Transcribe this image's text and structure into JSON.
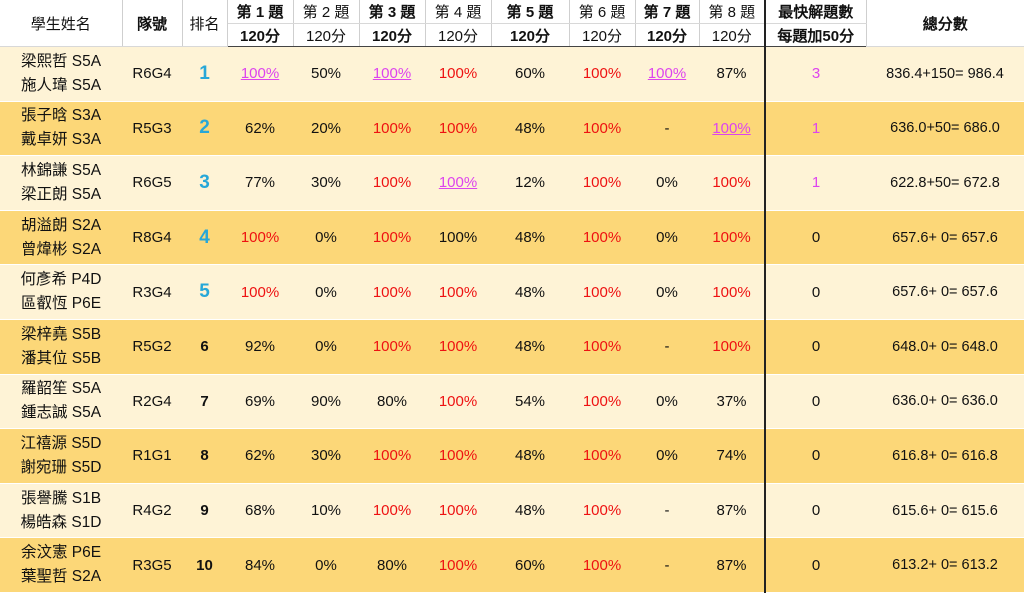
{
  "colors": {
    "row_light": "#fef3d6",
    "row_dark": "#fcd778",
    "full_score": "#ee1111",
    "first_solve": "#dd44ee",
    "top_rank": "#27a7d8"
  },
  "header": {
    "name": "學生姓名",
    "team": "隊號",
    "rank": "排名",
    "questions": [
      {
        "label": "第 1 題",
        "points": "120分",
        "bold": true
      },
      {
        "label": "第 2 題",
        "points": "120分",
        "bold": false
      },
      {
        "label": "第 3 題",
        "points": "120分",
        "bold": true
      },
      {
        "label": "第 4 題",
        "points": "120分",
        "bold": false
      },
      {
        "label": "第 5 題",
        "points": "120分",
        "bold": true
      },
      {
        "label": "第 6 題",
        "points": "120分",
        "bold": false
      },
      {
        "label": "第 7 題",
        "points": "120分",
        "bold": true
      },
      {
        "label": "第 8 題",
        "points": "120分",
        "bold": false
      }
    ],
    "fastest": "最快解題數",
    "fastest_sub": "每題加50分",
    "total": "總分數"
  },
  "rows": [
    {
      "names": [
        "梁熙哲 S5A",
        "施人瑋 S5A"
      ],
      "team": "R6G4",
      "rank": "1",
      "top": true,
      "scores": [
        [
          "100%",
          "pink"
        ],
        [
          "50%",
          "dark"
        ],
        [
          "100%",
          "pink"
        ],
        [
          "100%",
          "red"
        ],
        [
          "60%",
          "dark"
        ],
        [
          "100%",
          "red"
        ],
        [
          "100%",
          "pink"
        ],
        [
          "87%",
          "dark"
        ]
      ],
      "fastest": "3",
      "fastest_color": "magenta",
      "total": "836.4+150= 986.4"
    },
    {
      "names": [
        "張子晗 S3A",
        "戴卓妍 S3A"
      ],
      "team": "R5G3",
      "rank": "2",
      "top": true,
      "scores": [
        [
          "62%",
          "dark"
        ],
        [
          "20%",
          "dark"
        ],
        [
          "100%",
          "red"
        ],
        [
          "100%",
          "red"
        ],
        [
          "48%",
          "dark"
        ],
        [
          "100%",
          "red"
        ],
        [
          "-",
          "dark"
        ],
        [
          "100%",
          "pink"
        ]
      ],
      "fastest": "1",
      "fastest_color": "magenta",
      "total": "636.0+50= 686.0"
    },
    {
      "names": [
        "林錦謙 S5A",
        "梁正朗 S5A"
      ],
      "team": "R6G5",
      "rank": "3",
      "top": true,
      "scores": [
        [
          "77%",
          "dark"
        ],
        [
          "30%",
          "dark"
        ],
        [
          "100%",
          "red"
        ],
        [
          "100%",
          "pink"
        ],
        [
          "12%",
          "dark"
        ],
        [
          "100%",
          "red"
        ],
        [
          "0%",
          "dark"
        ],
        [
          "100%",
          "red"
        ]
      ],
      "fastest": "1",
      "fastest_color": "magenta",
      "total": "622.8+50= 672.8"
    },
    {
      "names": [
        "胡溢朗 S2A",
        "曾煒彬 S2A"
      ],
      "team": "R8G4",
      "rank": "4",
      "top": true,
      "scores": [
        [
          "100%",
          "red"
        ],
        [
          "0%",
          "dark"
        ],
        [
          "100%",
          "red"
        ],
        [
          "100%",
          "dark"
        ],
        [
          "48%",
          "dark"
        ],
        [
          "100%",
          "red"
        ],
        [
          "0%",
          "dark"
        ],
        [
          "100%",
          "red"
        ]
      ],
      "fastest": "0",
      "fastest_color": "dark",
      "total": "657.6+ 0= 657.6"
    },
    {
      "names": [
        "何彥希 P4D",
        "區叡恆 P6E"
      ],
      "team": "R3G4",
      "rank": "5",
      "top": true,
      "scores": [
        [
          "100%",
          "red"
        ],
        [
          "0%",
          "dark"
        ],
        [
          "100%",
          "red"
        ],
        [
          "100%",
          "red"
        ],
        [
          "48%",
          "dark"
        ],
        [
          "100%",
          "red"
        ],
        [
          "0%",
          "dark"
        ],
        [
          "100%",
          "red"
        ]
      ],
      "fastest": "0",
      "fastest_color": "dark",
      "total": "657.6+ 0= 657.6"
    },
    {
      "names": [
        "梁梓堯 S5B",
        "潘其位 S5B"
      ],
      "team": "R5G2",
      "rank": "6",
      "top": false,
      "scores": [
        [
          "92%",
          "dark"
        ],
        [
          "0%",
          "dark"
        ],
        [
          "100%",
          "red"
        ],
        [
          "100%",
          "red"
        ],
        [
          "48%",
          "dark"
        ],
        [
          "100%",
          "red"
        ],
        [
          "-",
          "dark"
        ],
        [
          "100%",
          "red"
        ]
      ],
      "fastest": "0",
      "fastest_color": "dark",
      "total": "648.0+ 0= 648.0"
    },
    {
      "names": [
        "羅韶笙 S5A",
        "鍾志誠 S5A"
      ],
      "team": "R2G4",
      "rank": "7",
      "top": false,
      "scores": [
        [
          "69%",
          "dark"
        ],
        [
          "90%",
          "dark"
        ],
        [
          "80%",
          "dark"
        ],
        [
          "100%",
          "red"
        ],
        [
          "54%",
          "dark"
        ],
        [
          "100%",
          "red"
        ],
        [
          "0%",
          "dark"
        ],
        [
          "37%",
          "dark"
        ]
      ],
      "fastest": "0",
      "fastest_color": "dark",
      "total": "636.0+ 0= 636.0"
    },
    {
      "names": [
        "江禧源 S5D",
        "謝宛珊 S5D"
      ],
      "team": "R1G1",
      "rank": "8",
      "top": false,
      "scores": [
        [
          "62%",
          "dark"
        ],
        [
          "30%",
          "dark"
        ],
        [
          "100%",
          "red"
        ],
        [
          "100%",
          "red"
        ],
        [
          "48%",
          "dark"
        ],
        [
          "100%",
          "red"
        ],
        [
          "0%",
          "dark"
        ],
        [
          "74%",
          "dark"
        ]
      ],
      "fastest": "0",
      "fastest_color": "dark",
      "total": "616.8+ 0= 616.8"
    },
    {
      "names": [
        "張譽騰 S1B",
        "楊皓森 S1D"
      ],
      "team": "R4G2",
      "rank": "9",
      "top": false,
      "scores": [
        [
          "68%",
          "dark"
        ],
        [
          "10%",
          "dark"
        ],
        [
          "100%",
          "red"
        ],
        [
          "100%",
          "red"
        ],
        [
          "48%",
          "dark"
        ],
        [
          "100%",
          "red"
        ],
        [
          "-",
          "dark"
        ],
        [
          "87%",
          "dark"
        ]
      ],
      "fastest": "0",
      "fastest_color": "dark",
      "total": "615.6+ 0= 615.6"
    },
    {
      "names": [
        "余汶憲 P6E",
        "葉聖哲 S2A"
      ],
      "team": "R3G5",
      "rank": "10",
      "top": false,
      "scores": [
        [
          "84%",
          "dark"
        ],
        [
          "0%",
          "dark"
        ],
        [
          "80%",
          "dark"
        ],
        [
          "100%",
          "red"
        ],
        [
          "60%",
          "dark"
        ],
        [
          "100%",
          "red"
        ],
        [
          "-",
          "dark"
        ],
        [
          "87%",
          "dark"
        ]
      ],
      "fastest": "0",
      "fastest_color": "dark",
      "total": "613.2+ 0= 613.2"
    }
  ]
}
